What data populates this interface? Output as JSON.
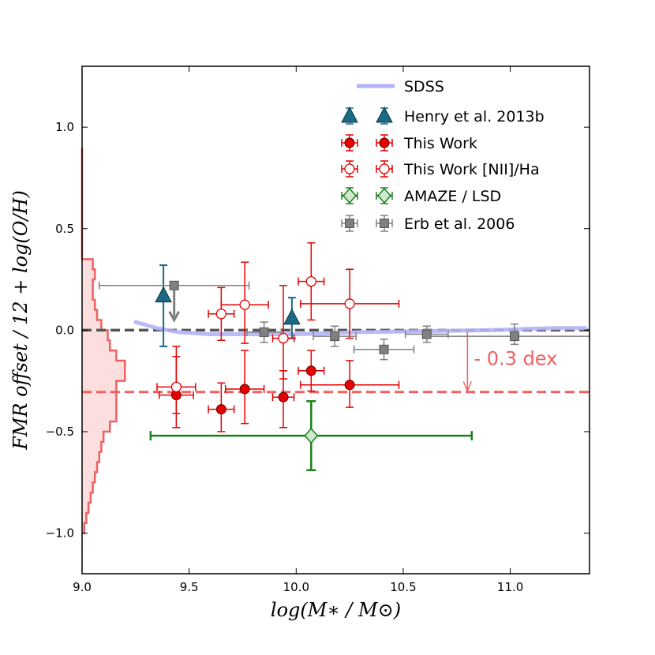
{
  "chart_data": {
    "type": "scatter",
    "xlabel": "log(M∗ / M⊙)",
    "ylabel": "FMR offset / 12 + log(O/H)",
    "xlim": [
      9.0,
      11.37
    ],
    "ylim": [
      -1.2,
      1.3
    ],
    "x_ticks": [
      9.0,
      9.5,
      10.0,
      10.5,
      11.0
    ],
    "x_tick_labels": [
      "9.0",
      "9.5",
      "10.0",
      "10.5",
      "11.0"
    ],
    "y_ticks": [
      1.0,
      0.5,
      0.0,
      -0.5,
      -1.0
    ],
    "y_tick_labels": [
      "1.0",
      "0.5",
      "0.0",
      "−0.5",
      "−1.0"
    ],
    "grid": false,
    "legend_position": "top-right",
    "colors": {
      "sdss": "#b3b3f5",
      "henry": "#1a6a85",
      "this_work": "#e60000",
      "amaze": "#1a801a",
      "amaze_fill": "#cfe8cf",
      "erb": "#808080",
      "offset": "#f06060",
      "hist_fill": "#fcdede"
    },
    "legend": [
      {
        "key": "sdss",
        "label": "SDSS"
      },
      {
        "key": "henry",
        "label": "Henry et al. 2013b"
      },
      {
        "key": "this_work",
        "label": "This Work"
      },
      {
        "key": "this_work_nii",
        "label": "This Work [NII]/Ha"
      },
      {
        "key": "amaze",
        "label": "AMAZE / LSD"
      },
      {
        "key": "erb",
        "label": "Erb et al. 2006"
      }
    ],
    "annotation": {
      "text": "- 0.3 dex",
      "x": 10.83,
      "y": -0.14,
      "arrow_x": 10.8,
      "arrow_from": -0.01,
      "arrow_to": -0.3
    },
    "reference_lines": [
      {
        "name": "zero-offset",
        "y": 0.0,
        "style": "dashed"
      },
      {
        "name": "minus-0.3-dex",
        "y": -0.305,
        "style": "dashed"
      }
    ],
    "series": [
      {
        "key": "sdss",
        "type": "line",
        "points": [
          [
            9.25,
            0.04
          ],
          [
            9.35,
            0.01
          ],
          [
            9.45,
            -0.01
          ],
          [
            9.6,
            -0.02
          ],
          [
            9.8,
            -0.02
          ],
          [
            10.0,
            -0.02
          ],
          [
            10.3,
            -0.01
          ],
          [
            10.6,
            -0.005
          ],
          [
            10.9,
            0.0
          ],
          [
            11.2,
            0.01
          ],
          [
            11.35,
            0.01
          ]
        ]
      },
      {
        "key": "henry",
        "marker": "triangle",
        "points": [
          {
            "x": 9.38,
            "y": 0.17,
            "yerr_lo": 0.25,
            "yerr_hi": 0.15
          },
          {
            "x": 9.98,
            "y": 0.06,
            "yerr_lo": 0.1,
            "yerr_hi": 0.1
          }
        ]
      },
      {
        "key": "this_work",
        "marker": "circle",
        "points": [
          {
            "x": 9.44,
            "y": -0.32,
            "xerr": 0.08,
            "yerr_lo": 0.16,
            "yerr_hi": 0.24
          },
          {
            "x": 9.65,
            "y": -0.39,
            "xerr": 0.06,
            "yerr_lo": 0.11,
            "yerr_hi": 0.13
          },
          {
            "x": 9.76,
            "y": -0.29,
            "xerr": 0.09,
            "yerr_lo": 0.17,
            "yerr_hi": 0.19
          },
          {
            "x": 9.94,
            "y": -0.33,
            "xerr": 0.05,
            "yerr_lo": 0.15,
            "yerr_hi": 0.13
          },
          {
            "x": 10.07,
            "y": -0.2,
            "xerr": 0.06,
            "yerr_lo": 0.1,
            "yerr_hi": 0.1
          },
          {
            "x": 10.25,
            "y": -0.27,
            "xerr": 0.23,
            "yerr_lo": 0.11,
            "yerr_hi": 0.12
          }
        ]
      },
      {
        "key": "this_work_nii",
        "marker": "open-circle",
        "points": [
          {
            "x": 9.44,
            "y": -0.28,
            "xerr": 0.09,
            "yerr_lo": 0.13,
            "yerr_hi": 0.15
          },
          {
            "x": 9.65,
            "y": 0.08,
            "xerr": 0.06,
            "yerr_lo": 0.13,
            "yerr_hi": 0.13
          },
          {
            "x": 9.76,
            "y": 0.125,
            "xerr": 0.11,
            "yerr_lo": 0.19,
            "yerr_hi": 0.21
          },
          {
            "x": 9.94,
            "y": -0.04,
            "xerr": 0.05,
            "yerr_lo": 0.2,
            "yerr_hi": 0.26
          },
          {
            "x": 10.07,
            "y": 0.24,
            "xerr": 0.06,
            "yerr_lo": 0.19,
            "yerr_hi": 0.19
          },
          {
            "x": 10.25,
            "y": 0.13,
            "xerr": 0.23,
            "yerr_lo": 0.17,
            "yerr_hi": 0.17
          }
        ]
      },
      {
        "key": "amaze",
        "marker": "diamond",
        "points": [
          {
            "x": 10.07,
            "y": -0.52,
            "xerr_lo": 0.75,
            "xerr_hi": 0.75,
            "yerr_lo": 0.17,
            "yerr_hi": 0.17
          }
        ]
      },
      {
        "key": "erb",
        "marker": "square",
        "points": [
          {
            "x": 9.43,
            "y": 0.22,
            "xerr_lo": 0.35,
            "xerr_hi": 0.35,
            "yerr_lo": 0.0,
            "yerr_hi": 0.0,
            "upper_limit": true
          },
          {
            "x": 9.85,
            "y": -0.01,
            "xerr_lo": 0.08,
            "xerr_hi": 0.08,
            "yerr_lo": 0.05,
            "yerr_hi": 0.05
          },
          {
            "x": 10.18,
            "y": -0.03,
            "xerr_lo": 0.1,
            "xerr_hi": 0.1,
            "yerr_lo": 0.05,
            "yerr_hi": 0.05
          },
          {
            "x": 10.41,
            "y": -0.095,
            "xerr_lo": 0.14,
            "xerr_hi": 0.14,
            "yerr_lo": 0.05,
            "yerr_hi": 0.05
          },
          {
            "x": 10.61,
            "y": -0.02,
            "xerr_lo": 0.1,
            "xerr_hi": 0.1,
            "yerr_lo": 0.04,
            "yerr_hi": 0.04
          },
          {
            "x": 11.02,
            "y": -0.03,
            "xerr_lo": 0.41,
            "xerr_hi": 0.35,
            "yerr_lo": 0.04,
            "yerr_hi": 0.06
          }
        ]
      }
    ],
    "histogram": {
      "bin_edges": [
        -1.0,
        -0.95,
        -0.9,
        -0.85,
        -0.8,
        -0.75,
        -0.7,
        -0.65,
        -0.6,
        -0.55,
        -0.5,
        -0.45,
        -0.4,
        -0.35,
        -0.3,
        -0.25,
        -0.2,
        -0.15,
        -0.1,
        -0.05,
        0.0,
        0.05,
        0.1,
        0.15,
        0.2,
        0.25,
        0.3,
        0.35,
        0.9
      ],
      "edge_x": [
        9.01,
        9.02,
        9.03,
        9.04,
        9.05,
        9.06,
        9.07,
        9.08,
        9.09,
        9.1,
        9.13,
        9.16,
        9.16,
        9.16,
        9.16,
        9.2,
        9.2,
        9.16,
        9.13,
        9.12,
        9.09,
        9.07,
        9.06,
        9.05,
        9.05,
        9.06,
        9.05,
        9.0
      ]
    }
  }
}
